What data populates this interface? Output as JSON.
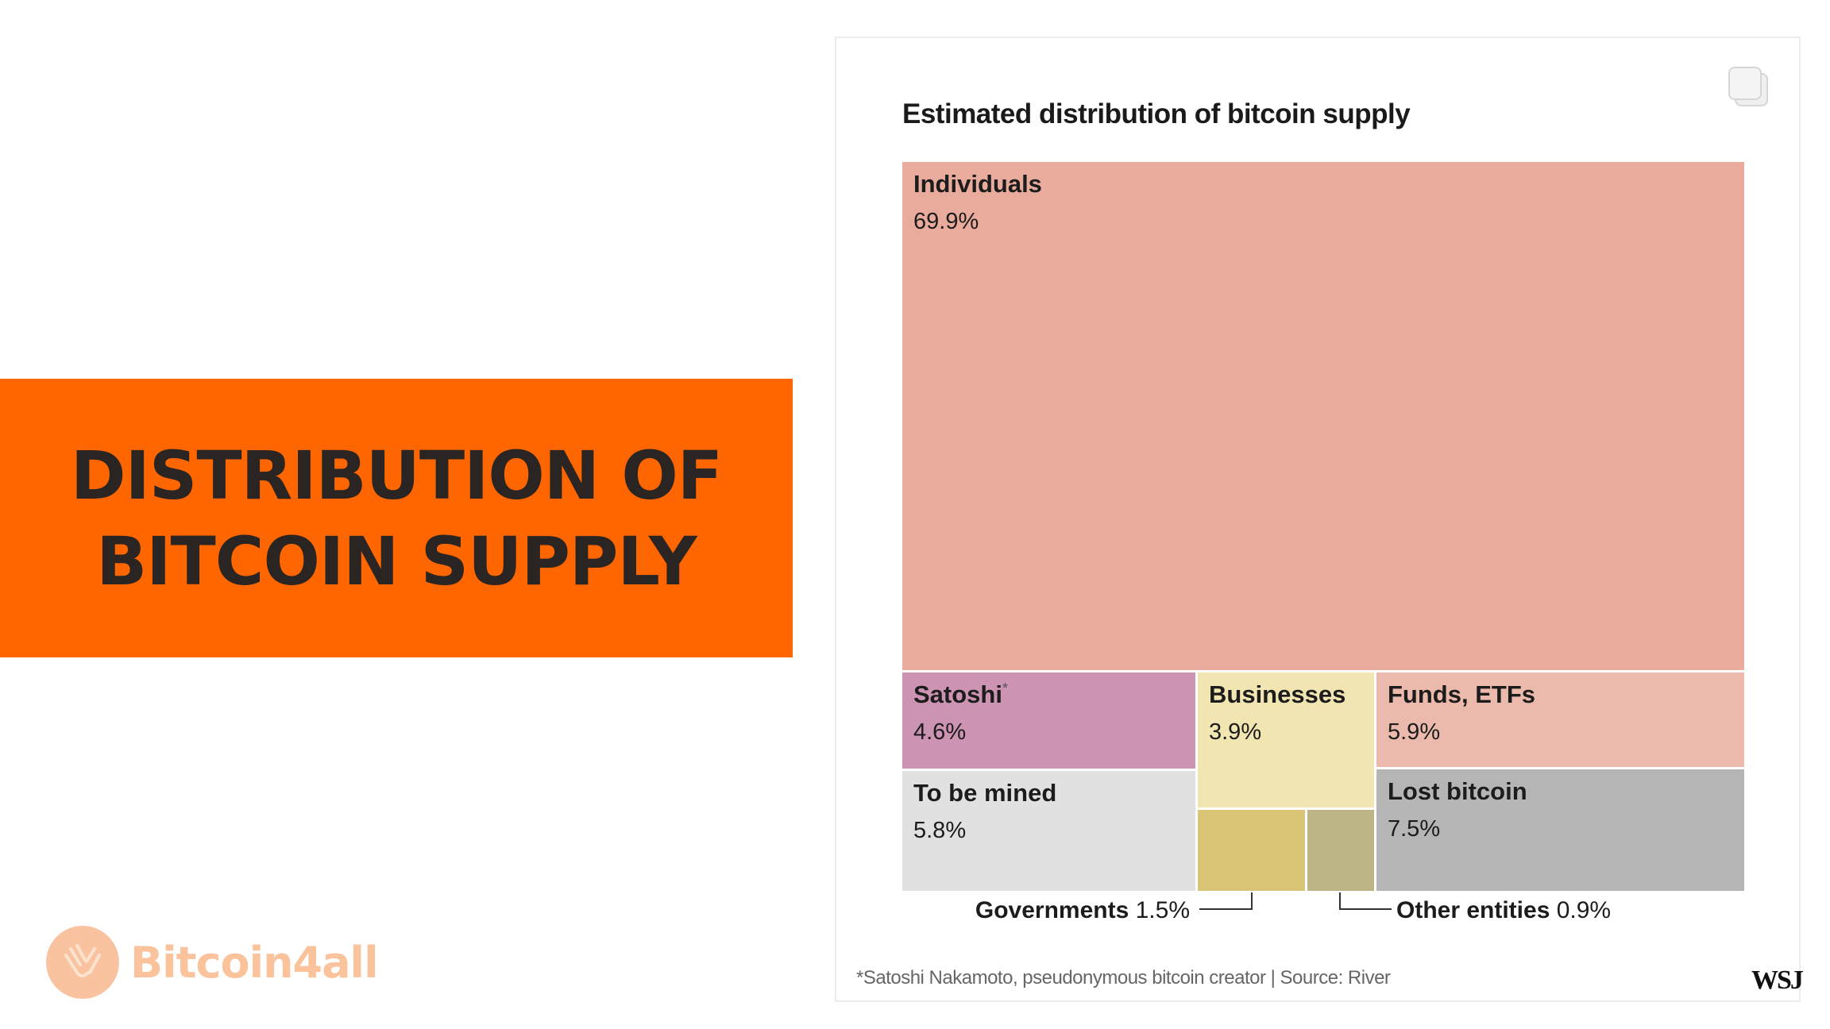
{
  "banner": {
    "line1": "DISTRIBUTION OF",
    "line2": "BITCOIN SUPPLY"
  },
  "logo": {
    "text": "Bitcoin4all",
    "icon": "hands-icon",
    "color": "#fbc39c"
  },
  "card": {
    "copy_icon": "copy-icon",
    "footnote": "*Satoshi Nakamoto, pseudonymous bitcoin creator | Source: River",
    "brand": "WSJ"
  },
  "chart_data": {
    "type": "treemap",
    "title": "Estimated distribution of bitcoin supply",
    "unit": "%",
    "items": [
      {
        "key": "individuals",
        "name": "Individuals",
        "value": 69.9,
        "value_label": "69.9%",
        "color": "#e9ab9c"
      },
      {
        "key": "satoshi",
        "name": "Satoshi",
        "marker": "*",
        "value": 4.6,
        "value_label": "4.6%",
        "color": "#cc93b2"
      },
      {
        "key": "to-be-mined",
        "name": "To be mined",
        "value": 5.8,
        "value_label": "5.8%",
        "color": "#e1e1e1"
      },
      {
        "key": "businesses",
        "name": "Businesses",
        "value": 3.9,
        "value_label": "3.9%",
        "color": "#f1e5b2"
      },
      {
        "key": "governments",
        "name": "Governments",
        "value": 1.5,
        "value_label": "1.5%",
        "color": "#d9c575",
        "external_label": "left"
      },
      {
        "key": "other-entities",
        "name": "Other entities",
        "value": 0.9,
        "value_label": "0.9%",
        "color": "#bdb585",
        "external_label": "right"
      },
      {
        "key": "funds-etfs",
        "name": "Funds, ETFs",
        "value": 5.9,
        "value_label": "5.9%",
        "color": "#ecbaad"
      },
      {
        "key": "lost-bitcoin",
        "name": "Lost bitcoin",
        "value": 7.5,
        "value_label": "7.5%",
        "color": "#b5b5b5"
      }
    ]
  }
}
